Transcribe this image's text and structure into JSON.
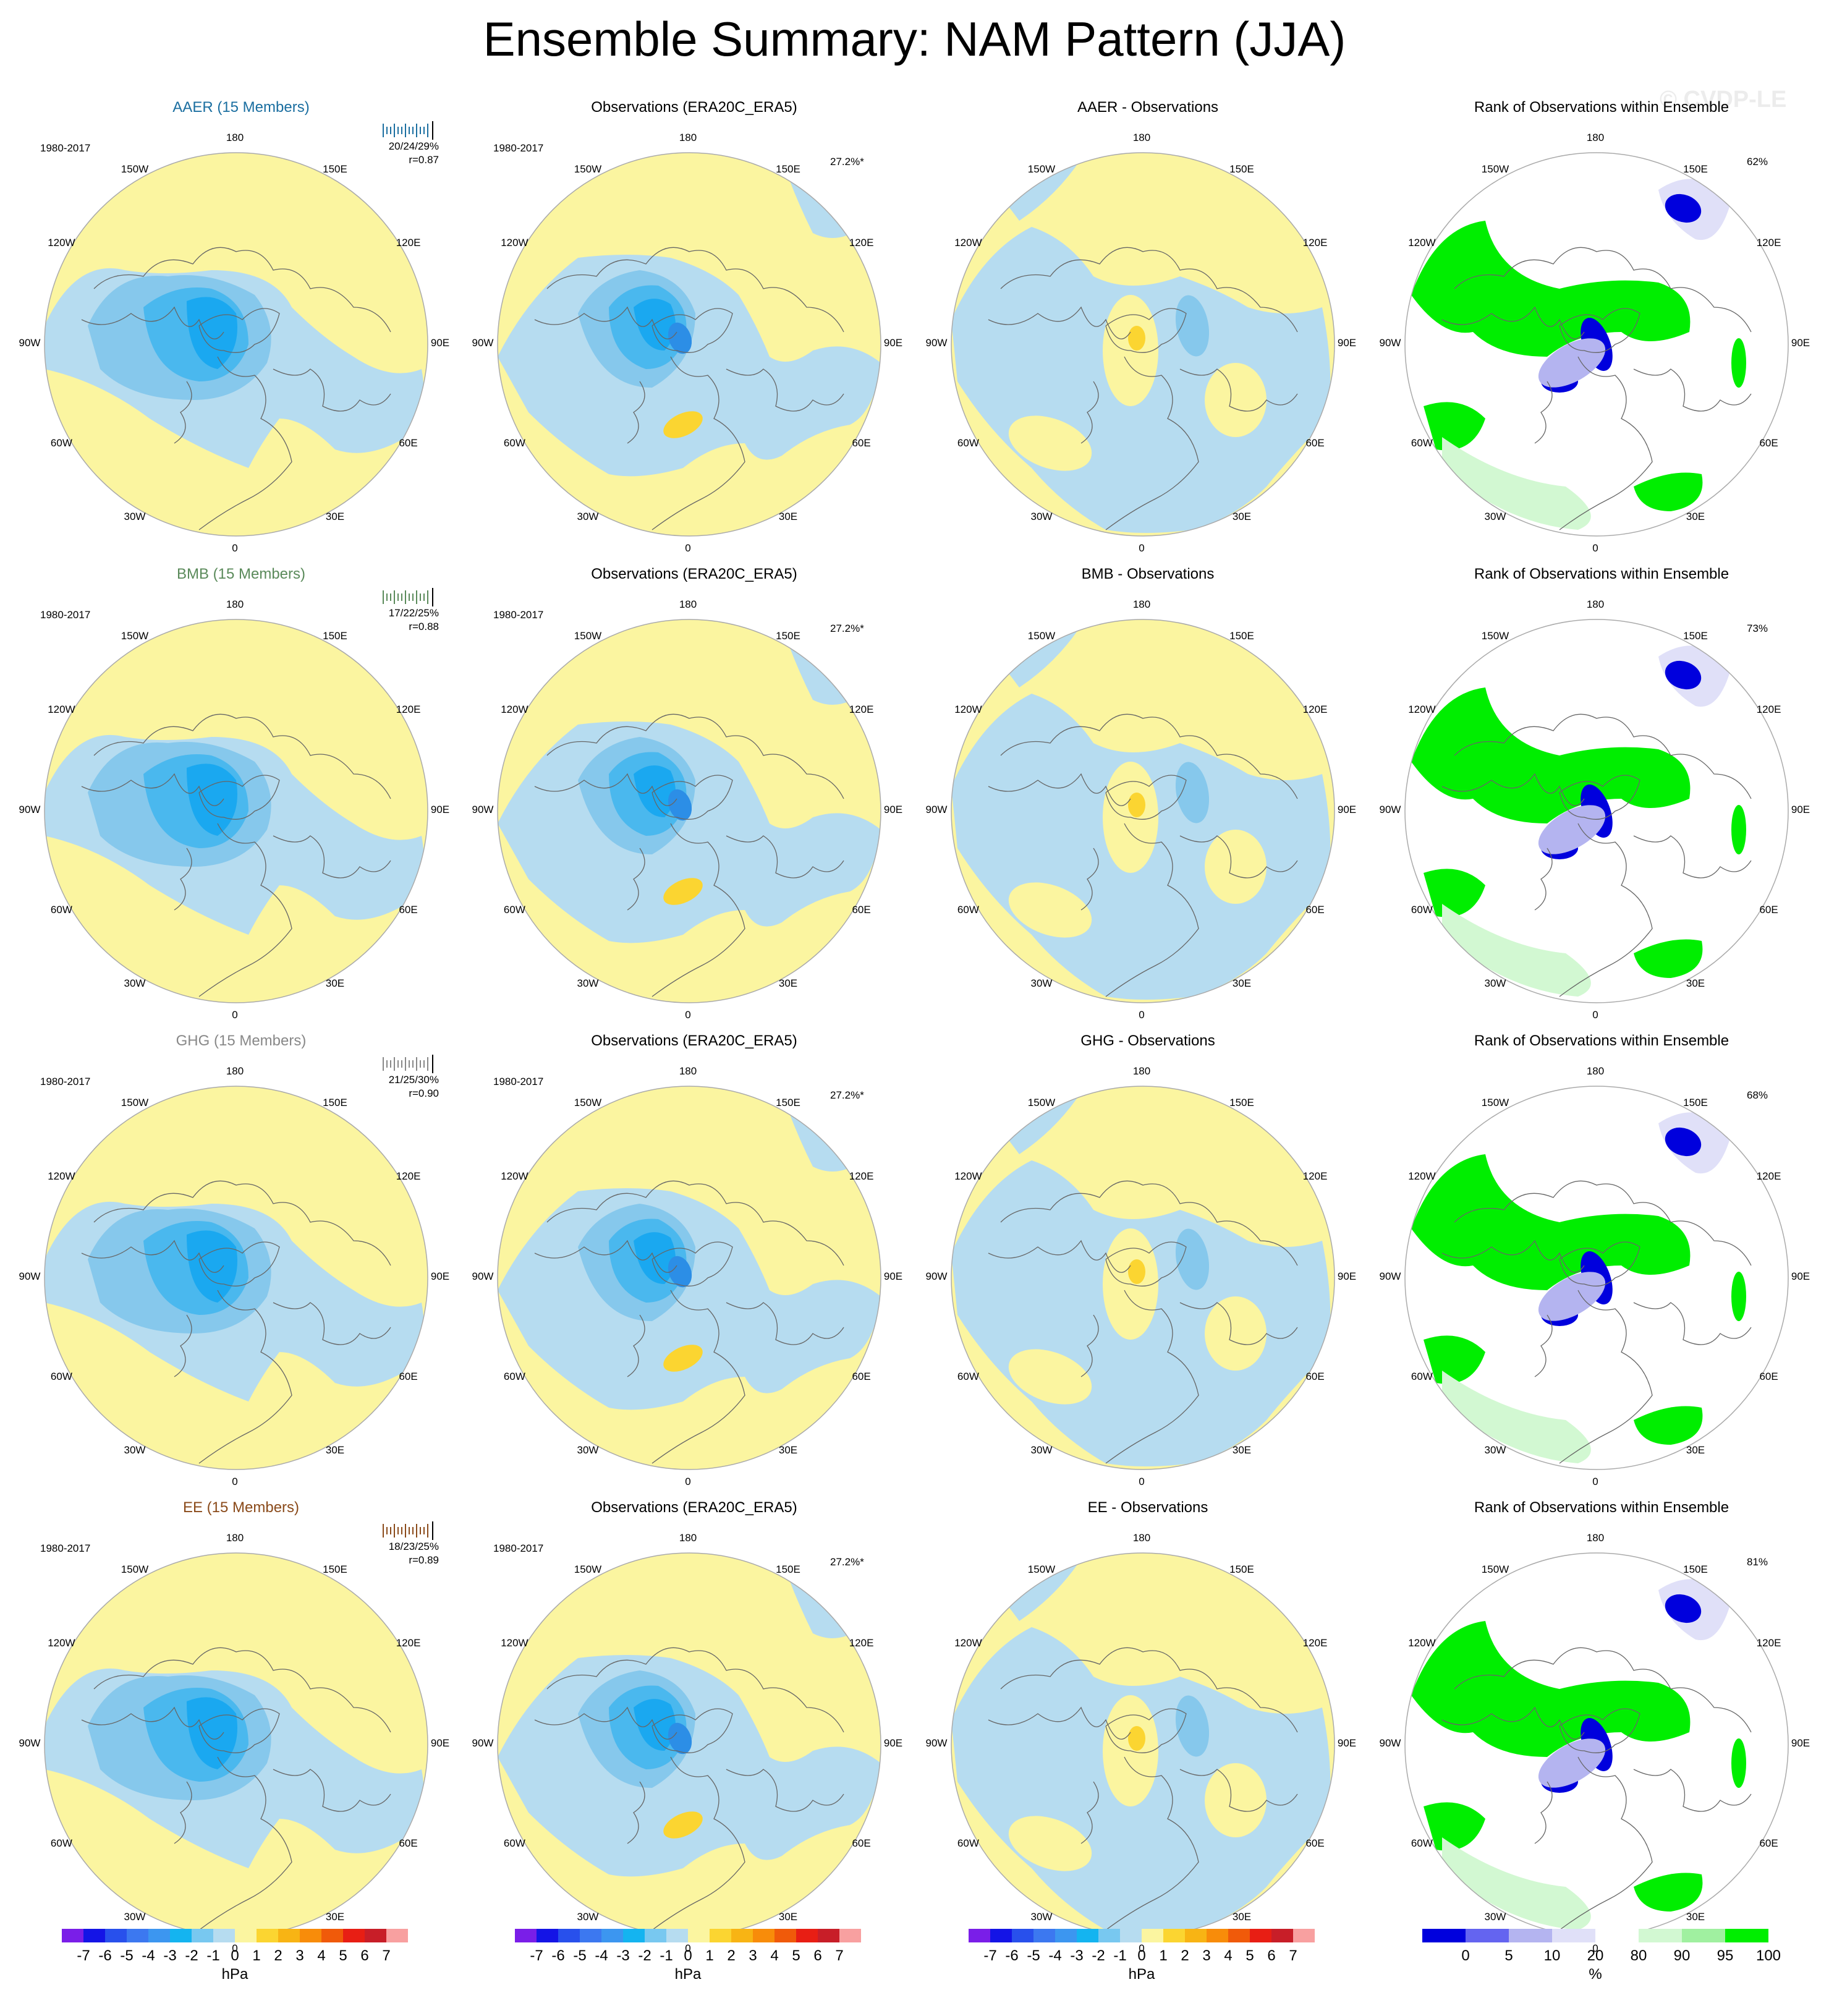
{
  "title": "Ensemble Summary: NAM Pattern (JJA)",
  "watermark": "© CVDP-LE",
  "period": "1980-2017",
  "lon_labels": [
    "180",
    "150E",
    "120E",
    "90E",
    "60E",
    "30E",
    "0",
    "30W",
    "60W",
    "90W",
    "120W",
    "150W"
  ],
  "colors": {
    "yellow": "#fbf5a0",
    "lightblue": "#b6dcf0",
    "blue1": "#86c8ec",
    "blue2": "#4ab8ee",
    "blue3": "#1aa8f0",
    "blue4": "#2c8ee6",
    "orange": "#fbd531",
    "green": "#00ee00",
    "lightgreen": "#d2f8d2",
    "midgreen": "#a0f0a0",
    "navy": "#0000dd",
    "lavender": "#b4b4f0",
    "palelavender": "#e0e0f8",
    "coast": "#666666"
  },
  "rows": [
    {
      "experiment": "AAER",
      "members_label": "AAER (15 Members)",
      "label_color": "#1a6ea0",
      "spread_text": "20/24/29%",
      "corr_text": "r=0.87",
      "diff_title": "AAER - Observations",
      "rank_pct": "62%",
      "obs_title": "Observations (ERA20C_ERA5)",
      "obs_pct": "27.2%*",
      "rank_title": "Rank of Observations within Ensemble"
    },
    {
      "experiment": "BMB",
      "members_label": "BMB (15 Members)",
      "label_color": "#5a8a5a",
      "spread_text": "17/22/25%",
      "corr_text": "r=0.88",
      "diff_title": "BMB - Observations",
      "rank_pct": "73%",
      "obs_title": "Observations (ERA20C_ERA5)",
      "obs_pct": "27.2%*",
      "rank_title": "Rank of Observations within Ensemble"
    },
    {
      "experiment": "GHG",
      "members_label": "GHG (15 Members)",
      "label_color": "#888888",
      "spread_text": "21/25/30%",
      "corr_text": "r=0.90",
      "diff_title": "GHG - Observations",
      "rank_pct": "68%",
      "obs_title": "Observations (ERA20C_ERA5)",
      "obs_pct": "27.2%*",
      "rank_title": "Rank of Observations within Ensemble"
    },
    {
      "experiment": "EE",
      "members_label": "EE (15 Members)",
      "label_color": "#8a4a1a",
      "spread_text": "18/23/25%",
      "corr_text": "r=0.89",
      "diff_title": "EE - Observations",
      "rank_pct": "81%",
      "obs_title": "Observations (ERA20C_ERA5)",
      "obs_pct": "27.2%*",
      "rank_title": "Rank of Observations within Ensemble"
    }
  ],
  "colorbar_hpa": {
    "labels": [
      "-7",
      "-6",
      "-5",
      "-4",
      "-3",
      "-2",
      "-1",
      "0",
      "1",
      "2",
      "3",
      "4",
      "5",
      "6",
      "7"
    ],
    "colors": [
      "#7a1ee8",
      "#1414e6",
      "#2850ec",
      "#3c78f0",
      "#3c96f0",
      "#14b4f0",
      "#78c8f0",
      "#b6dcf0",
      "#fbf5a0",
      "#fbd531",
      "#f8b414",
      "#f88c0a",
      "#f05a0a",
      "#e81e14",
      "#c81e28",
      "#f8a0a0"
    ],
    "unit": "hPa"
  },
  "colorbar_pct": {
    "labels": [
      "0",
      "5",
      "10",
      "20",
      "80",
      "90",
      "95",
      "100"
    ],
    "colors": [
      "#0000dd",
      "#6464f0",
      "#b4b4f0",
      "#e0e0f8",
      "#ffffff",
      "#d2f8d2",
      "#a0f0a0",
      "#00ee00"
    ],
    "unit": "%"
  }
}
